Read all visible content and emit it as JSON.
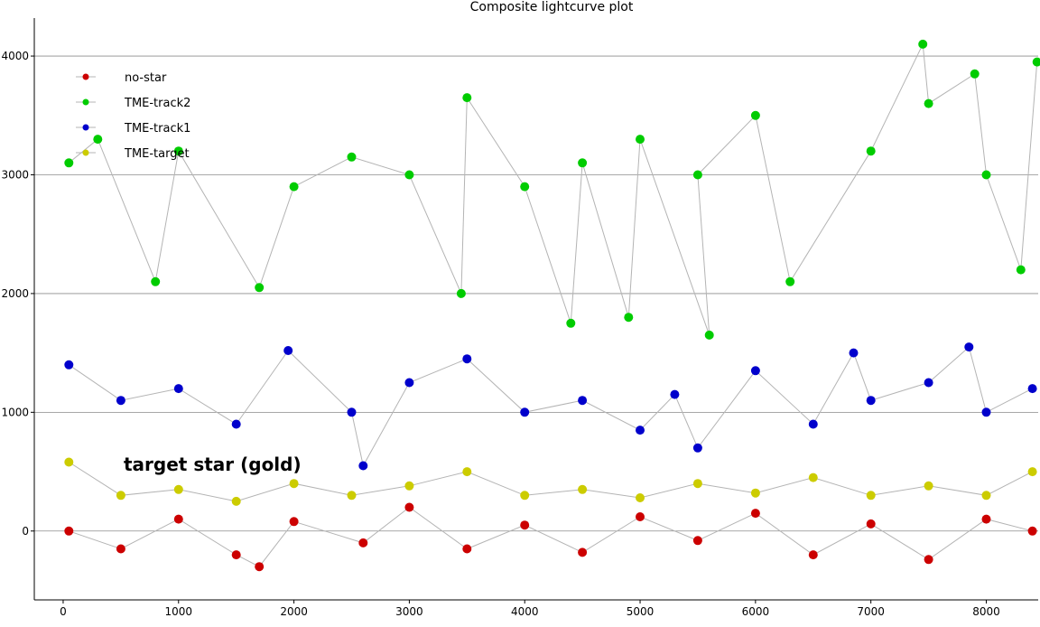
{
  "chart_data": {
    "type": "scatter",
    "title": "Composite lightcurve plot",
    "xlabel": "",
    "ylabel": "",
    "xlim": [
      -250,
      8450
    ],
    "ylim": [
      -580,
      4320
    ],
    "xticks": [
      0,
      1000,
      2000,
      3000,
      4000,
      5000,
      6000,
      7000,
      8000
    ],
    "yticks": [
      0,
      1000,
      2000,
      3000,
      4000
    ],
    "grid": {
      "horizontal": true,
      "vertical": false
    },
    "legend": {
      "placement": "top-left"
    },
    "annotation": "target star (gold)",
    "series": [
      {
        "name": "no-star",
        "color": "#cc0000",
        "x": [
          50,
          500,
          1000,
          1500,
          1700,
          2000,
          2600,
          3000,
          3500,
          4000,
          4500,
          5000,
          5500,
          6000,
          6500,
          7000,
          7500,
          8000,
          8400
        ],
        "values": [
          0,
          -150,
          100,
          -200,
          -300,
          80,
          -100,
          200,
          -150,
          50,
          -180,
          120,
          -80,
          150,
          -200,
          60,
          -240,
          100,
          0
        ]
      },
      {
        "name": "TME-track2",
        "color": "#00cc00",
        "x": [
          50,
          300,
          800,
          1000,
          1700,
          2000,
          2500,
          3000,
          3450,
          3500,
          4000,
          4400,
          4500,
          4900,
          5000,
          5600,
          5500,
          6000,
          6300,
          7000,
          7450,
          7500,
          7900,
          8000,
          8300,
          8440
        ],
        "values": [
          3100,
          3300,
          2100,
          3200,
          2050,
          2900,
          3150,
          3000,
          2000,
          3650,
          2900,
          1750,
          3100,
          1800,
          3300,
          1650,
          3000,
          3500,
          2100,
          3200,
          4100,
          3600,
          3850,
          3000,
          2200,
          3950
        ]
      },
      {
        "name": "TME-track1",
        "color": "#0000cc",
        "x": [
          50,
          500,
          1000,
          1500,
          1950,
          2500,
          2600,
          3000,
          3500,
          4000,
          4500,
          5000,
          5300,
          5500,
          6000,
          6500,
          6850,
          7000,
          7500,
          7850,
          8000,
          8400
        ],
        "values": [
          1400,
          1100,
          1200,
          900,
          1520,
          1000,
          550,
          1250,
          1450,
          1000,
          1100,
          850,
          1150,
          700,
          1350,
          900,
          1500,
          1100,
          1250,
          1550,
          1000,
          1200
        ]
      },
      {
        "name": "TME-target",
        "color": "#cccc00",
        "x": [
          50,
          500,
          1000,
          1500,
          2000,
          2500,
          3000,
          3500,
          4000,
          4500,
          5000,
          5500,
          6000,
          6500,
          7000,
          7500,
          8000,
          8400
        ],
        "values": [
          580,
          300,
          350,
          250,
          400,
          300,
          380,
          500,
          300,
          350,
          280,
          400,
          320,
          450,
          300,
          380,
          300,
          500
        ]
      }
    ]
  }
}
